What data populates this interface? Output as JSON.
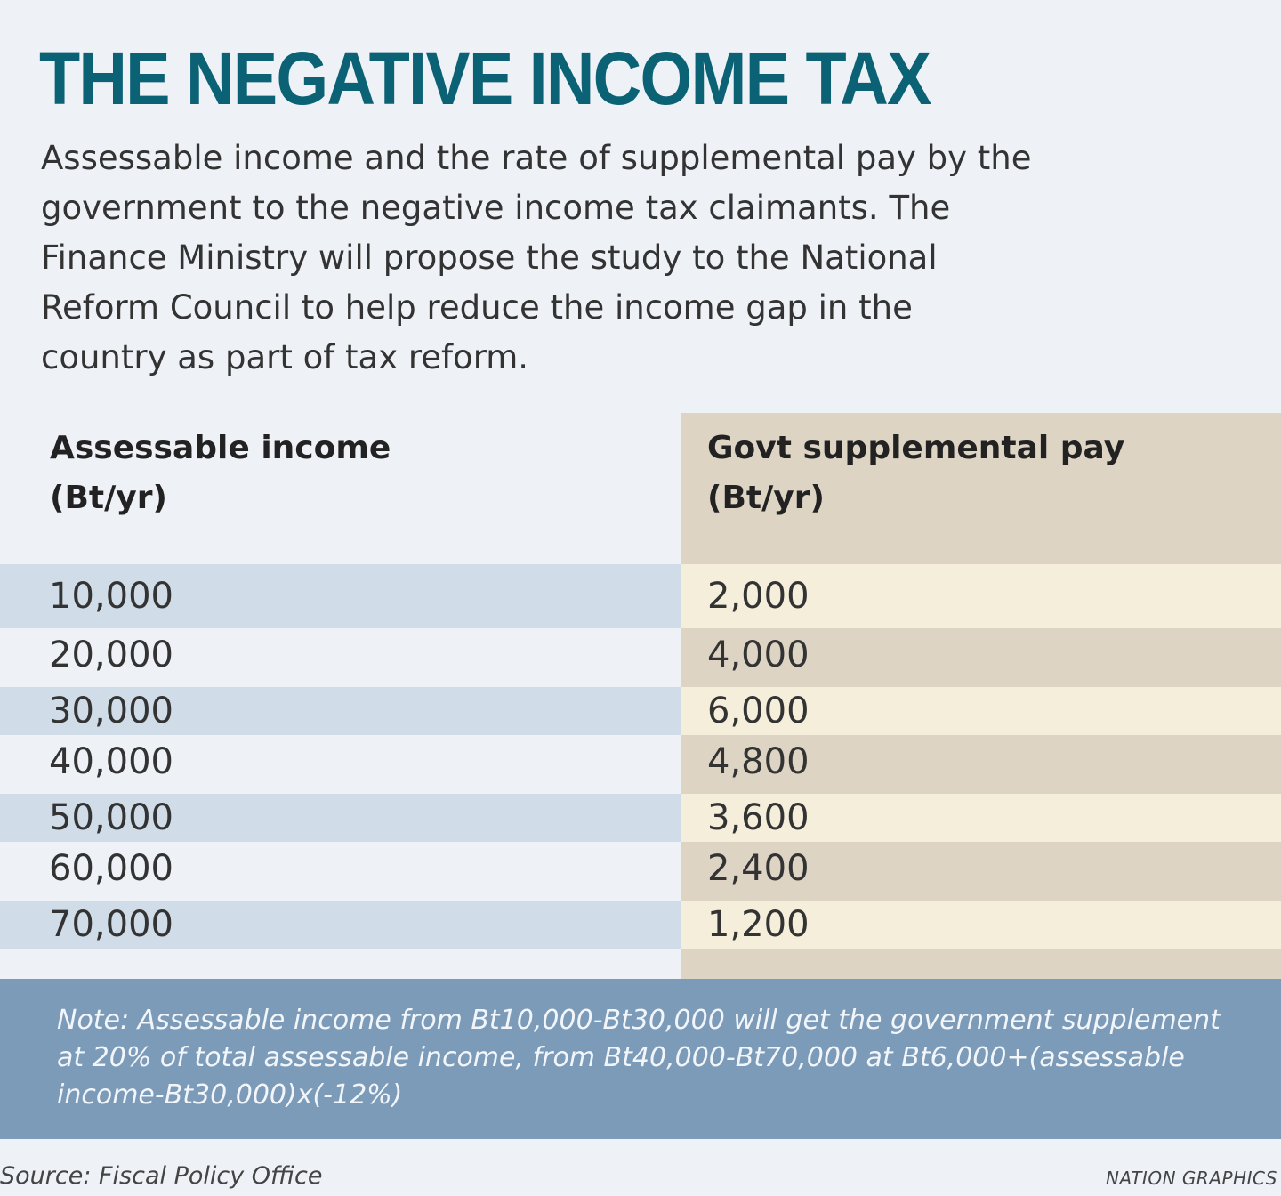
{
  "title": "THE NEGATIVE INCOME TAX",
  "subtitle": "Assessable income and the rate of supplemental pay by the government to the negative income tax claimants. The Finance Ministry will propose the study to the National Reform Council to help reduce the income gap in the country as part of tax reform.",
  "colors": {
    "title": "#0b6275",
    "left_band": "#d0dde8",
    "left_plain": "#eef2f7",
    "right_band": "#f4eedb",
    "right_plain": "#ddd4c4",
    "note_bg": "#7b9bb8"
  },
  "chart_data": {
    "type": "table",
    "columns": [
      "Assessable income\n(Bt/yr)",
      "Govt supplemental pay\n(Bt/yr)"
    ],
    "header_left_line1": "Assessable income",
    "header_left_line2": "(Bt/yr)",
    "header_right_line1": "Govt supplemental pay",
    "header_right_line2": "(Bt/yr)",
    "rows": [
      [
        "10,000",
        "2,000"
      ],
      [
        "20,000",
        "4,000"
      ],
      [
        "30,000",
        "6,000"
      ],
      [
        "40,000",
        "4,800"
      ],
      [
        "50,000",
        "3,600"
      ],
      [
        "60,000",
        "2,400"
      ],
      [
        "70,000",
        "1,200"
      ]
    ]
  },
  "note": "Note: Assessable income from Bt10,000-Bt30,000 will get the government supplement at 20% of total assessable income, from Bt40,000-Bt70,000 at Bt6,000+(assessable income-Bt30,000)x(-12%)",
  "source": "Source: Fiscal Policy Office",
  "credit": "NATION GRAPHICS"
}
